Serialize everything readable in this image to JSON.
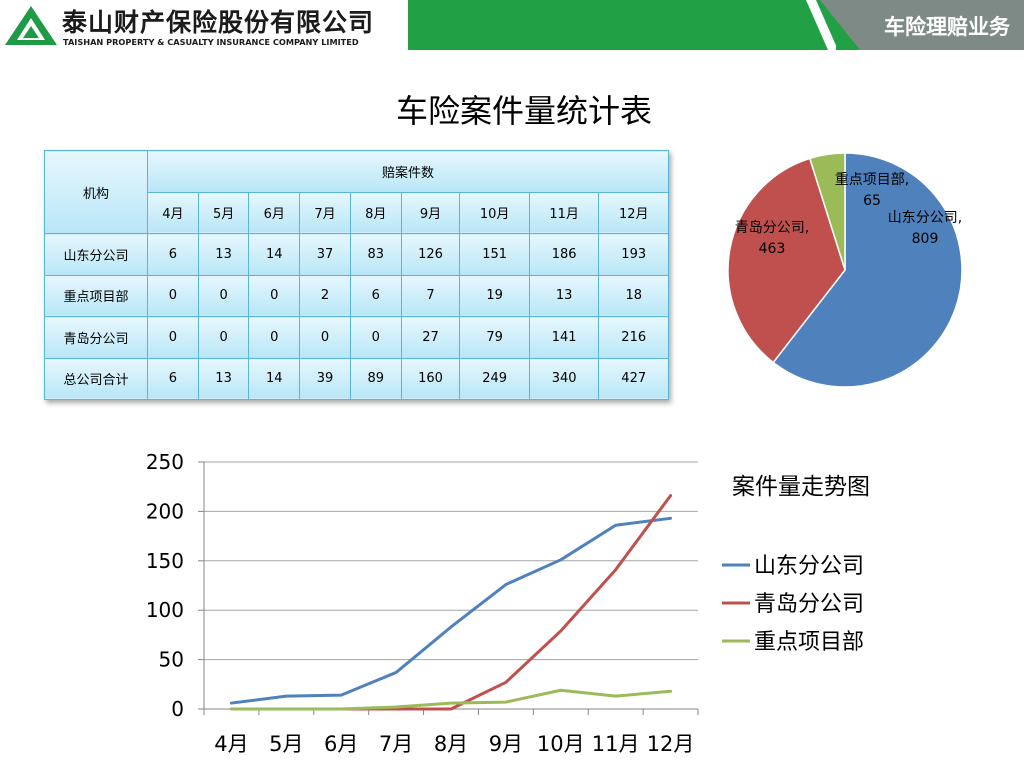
{
  "header": {
    "company_cn": "泰山财产保险股份有限公司",
    "company_en": "TAISHAN PROPERTY & CASUALTY INSURANCE COMPANY LIMITED",
    "section_tag": "车险理赔业务",
    "colors": {
      "green": "#22a045",
      "gray": "#7e8a85"
    }
  },
  "title": "车险案件量统计表",
  "table": {
    "org_header": "机构",
    "group_header": "赔案件数",
    "months": [
      "4月",
      "5月",
      "6月",
      "7月",
      "8月",
      "9月",
      "10月",
      "11月",
      "12月"
    ],
    "rows": [
      {
        "org": "山东分公司",
        "values": [
          "6",
          "13",
          "14",
          "37",
          "83",
          "126",
          "151",
          "186",
          "193"
        ]
      },
      {
        "org": "重点项目部",
        "values": [
          "0",
          "0",
          "0",
          "2",
          "6",
          "7",
          "19",
          "13",
          "18"
        ]
      },
      {
        "org": "青岛分公司",
        "values": [
          "0",
          "0",
          "0",
          "0",
          "0",
          "27",
          "79",
          "141",
          "216"
        ]
      },
      {
        "org": "总公司合计",
        "values": [
          "6",
          "13",
          "14",
          "39",
          "89",
          "160",
          "249",
          "340",
          "427"
        ]
      }
    ]
  },
  "chart_data": [
    {
      "type": "pie",
      "slices": [
        {
          "name": "山东分公司",
          "value": 809,
          "label_line1": "山东分公司,",
          "label_line2": "809",
          "color": "#4f81bd"
        },
        {
          "name": "青岛分公司",
          "value": 463,
          "label_line1": "青岛分公司,",
          "label_line2": "463",
          "color": "#c0504d"
        },
        {
          "name": "重点项目部",
          "value": 65,
          "label_line1": "重点项目部,",
          "label_line2": "65",
          "color": "#9bbb59"
        }
      ]
    },
    {
      "type": "line",
      "title": "案件量走势图",
      "categories": [
        "4月",
        "5月",
        "6月",
        "7月",
        "8月",
        "9月",
        "10月",
        "11月",
        "12月"
      ],
      "ylim": [
        0,
        250
      ],
      "yticks": [
        0,
        50,
        100,
        150,
        200,
        250
      ],
      "grid": true,
      "legend": "right",
      "series": [
        {
          "name": "山东分公司",
          "values": [
            6,
            13,
            14,
            37,
            83,
            126,
            151,
            186,
            193
          ],
          "color": "#4f81bd"
        },
        {
          "name": "青岛分公司",
          "values": [
            0,
            0,
            0,
            0,
            0,
            27,
            79,
            141,
            216
          ],
          "color": "#c0504d"
        },
        {
          "name": "重点项目部",
          "values": [
            0,
            0,
            0,
            2,
            6,
            7,
            19,
            13,
            18
          ],
          "color": "#9bbb59"
        }
      ]
    }
  ]
}
